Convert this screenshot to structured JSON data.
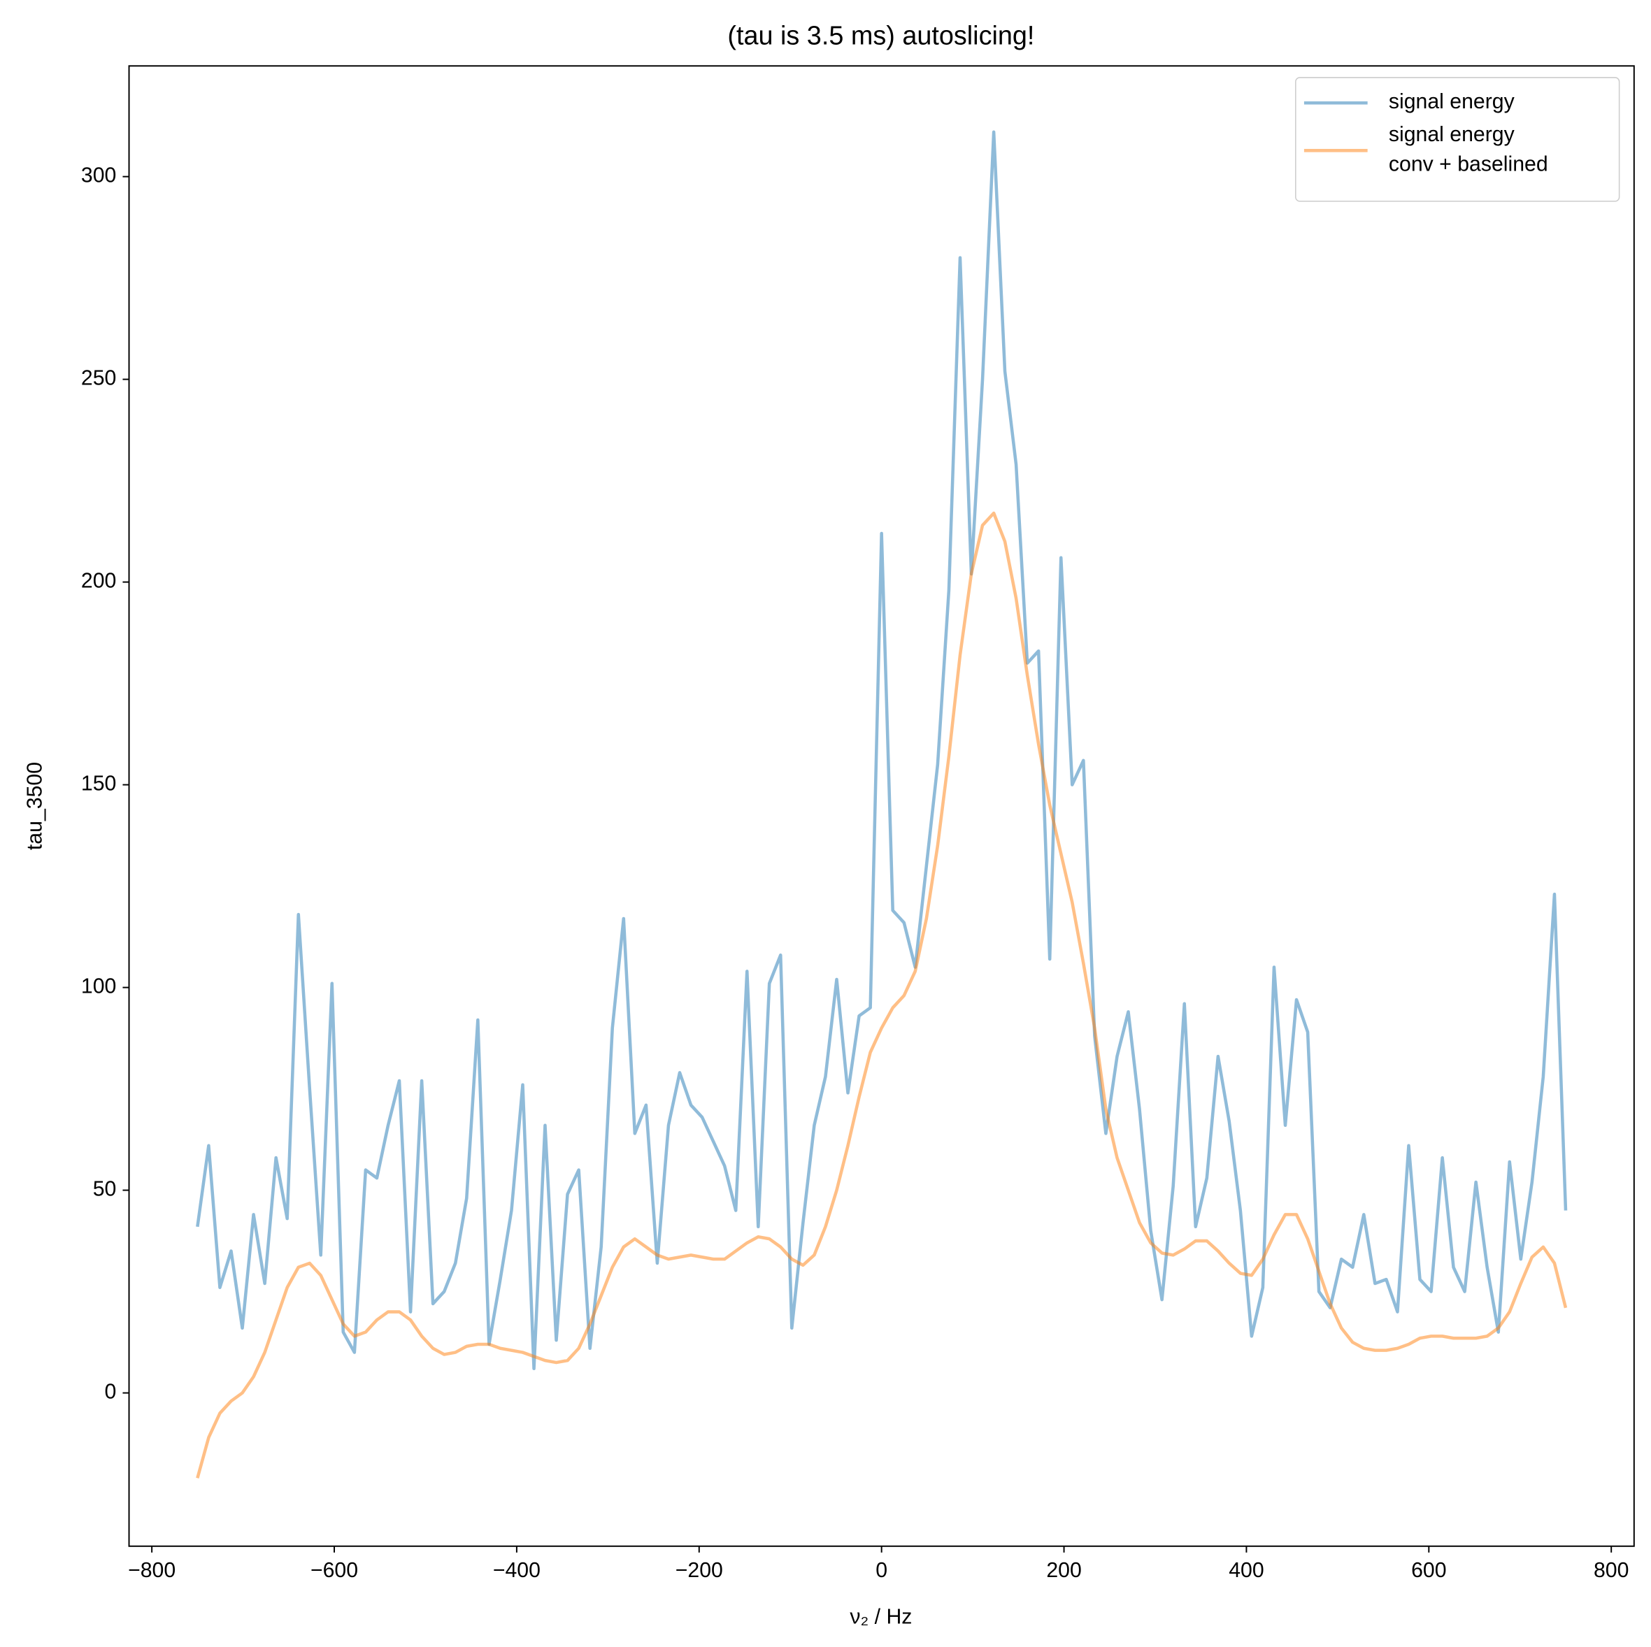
{
  "chart_data": {
    "type": "line",
    "title": "(tau is 3.5 ms) autoslicing!",
    "xlabel": "ν₂ / Hz",
    "ylabel": "tau_3500",
    "x": [
      -750,
      -737.7,
      -725.4,
      -713.1,
      -700.8,
      -688.5,
      -676.2,
      -663.9,
      -651.6,
      -639.3,
      -627.0,
      -614.8,
      -602.5,
      -590.2,
      -577.9,
      -565.6,
      -553.3,
      -541.0,
      -528.7,
      -516.4,
      -504.1,
      -491.8,
      -479.5,
      -467.2,
      -454.9,
      -442.6,
      -430.3,
      -418.0,
      -405.7,
      -393.4,
      -381.1,
      -368.9,
      -356.6,
      -344.3,
      -332.0,
      -319.7,
      -307.4,
      -295.1,
      -282.8,
      -270.5,
      -258.2,
      -245.9,
      -233.6,
      -221.3,
      -209.0,
      -196.7,
      -184.4,
      -172.1,
      -159.8,
      -147.5,
      -135.2,
      -123.0,
      -110.7,
      -98.4,
      -86.1,
      -73.8,
      -61.5,
      -49.2,
      -36.9,
      -24.6,
      -12.3,
      0,
      12.3,
      24.6,
      36.9,
      49.2,
      61.5,
      73.8,
      86.1,
      98.4,
      110.7,
      123.0,
      135.2,
      147.5,
      159.8,
      172.1,
      184.4,
      196.7,
      209.0,
      221.3,
      233.6,
      245.9,
      258.2,
      270.5,
      282.8,
      295.1,
      307.4,
      319.7,
      332.0,
      344.3,
      356.6,
      368.9,
      381.1,
      393.4,
      405.7,
      418.0,
      430.3,
      442.6,
      454.9,
      467.2,
      479.5,
      491.8,
      504.1,
      516.4,
      528.7,
      541.0,
      553.3,
      565.6,
      577.9,
      590.2,
      602.5,
      614.8,
      627.0,
      639.3,
      651.6,
      663.9,
      676.2,
      688.5,
      700.8,
      713.1,
      725.4,
      737.7,
      750
    ],
    "series": [
      {
        "name": "signal energy",
        "color": "#1f77b4",
        "values": [
          41,
          61,
          26,
          35,
          16,
          44,
          27,
          58,
          43,
          118,
          75,
          34,
          101,
          15,
          10,
          55,
          53,
          66,
          77,
          20,
          77,
          22,
          25,
          32,
          48,
          92,
          12,
          28,
          45,
          76,
          6,
          66,
          13,
          49,
          55,
          11,
          36,
          90,
          117,
          64,
          71,
          32,
          66,
          79,
          71,
          68,
          62,
          56,
          45,
          104,
          41,
          101,
          108,
          16,
          42,
          66,
          78,
          102,
          74,
          93,
          95,
          212,
          119,
          116,
          105,
          130,
          155,
          198,
          280,
          202,
          250,
          311,
          252,
          229,
          180,
          183,
          107,
          206,
          150,
          156,
          88,
          64,
          83,
          94,
          70,
          40,
          23,
          51,
          96,
          41,
          53,
          83,
          67,
          45,
          14,
          26,
          105,
          66,
          97,
          89,
          25,
          21,
          33,
          31,
          44,
          27,
          28,
          20,
          61,
          28,
          25,
          58,
          31,
          25,
          52,
          31,
          15,
          57,
          33,
          52,
          78,
          123,
          45
        ]
      },
      {
        "name": "signal energy\nconv + baselined",
        "color": "#ff7f0e",
        "values": [
          -21,
          -11,
          -5,
          -2,
          0,
          4,
          10,
          18,
          26,
          31,
          32,
          29,
          23,
          17,
          14,
          15,
          18,
          20,
          20,
          18,
          14,
          11,
          9.5,
          10,
          11.5,
          12,
          12,
          11,
          10.5,
          10,
          9,
          8,
          7.5,
          8,
          11,
          17,
          24,
          31,
          36,
          38,
          36,
          34,
          33,
          33.5,
          34,
          33.5,
          33,
          33,
          35,
          37,
          38.5,
          38,
          36,
          33,
          31.5,
          34,
          41,
          50,
          61,
          73,
          84,
          90,
          95,
          98,
          104,
          117,
          135,
          157,
          182,
          202,
          214,
          217,
          210,
          196,
          177,
          160,
          145,
          133,
          121,
          106,
          90,
          70,
          58,
          50,
          42,
          37,
          34.5,
          34,
          35.5,
          37.5,
          37.5,
          35,
          32,
          29.5,
          29,
          33,
          39,
          44,
          44,
          38,
          30,
          22,
          16,
          12.5,
          11,
          10.5,
          10.5,
          11,
          12,
          13.5,
          14,
          14,
          13.5,
          13.5,
          13.5,
          14,
          16,
          20,
          27,
          33.5,
          36,
          32,
          21
        ]
      }
    ],
    "xlim": [
      -825,
      825
    ],
    "ylim": [
      -37.8,
      327.3
    ],
    "xticks": [
      {
        "value": -800,
        "label": "−800"
      },
      {
        "value": -600,
        "label": "−600"
      },
      {
        "value": -400,
        "label": "−400"
      },
      {
        "value": -200,
        "label": "−200"
      },
      0,
      200,
      400,
      600,
      800
    ],
    "yticks": [
      0,
      50,
      100,
      150,
      200,
      250,
      300
    ],
    "alpha": 0.5,
    "legend": "upper right",
    "grid": false
  }
}
